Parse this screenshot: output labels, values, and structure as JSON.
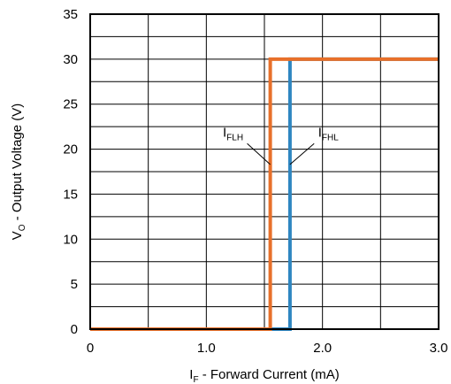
{
  "chart_data": {
    "type": "line",
    "title": "",
    "xlabel": {
      "main": "I",
      "sub": "F",
      "rest": " - Forward Current (mA)"
    },
    "ylabel": {
      "main": "V",
      "sub": "O",
      "rest": " - Output Voltage (V)"
    },
    "xlim": [
      0,
      3.0
    ],
    "ylim": [
      0,
      35
    ],
    "x_ticks": [
      0,
      0.5,
      1.0,
      1.5,
      2.0,
      2.5,
      3.0
    ],
    "x_tick_labels": [
      "0",
      "",
      "1.0",
      "",
      "2.0",
      "",
      "3.0"
    ],
    "y_ticks": [
      0,
      2.5,
      5,
      7.5,
      10,
      12.5,
      15,
      17.5,
      20,
      22.5,
      25,
      27.5,
      30,
      32.5,
      35
    ],
    "y_tick_labels": [
      "0",
      "",
      "5",
      "",
      "10",
      "",
      "15",
      "",
      "20",
      "",
      "25",
      "",
      "30",
      "",
      "35"
    ],
    "grid": true,
    "series": [
      {
        "color": "#2E86C1",
        "points": [
          [
            0,
            0
          ],
          [
            1.72,
            0
          ],
          [
            1.72,
            30
          ],
          [
            3.0,
            30
          ]
        ]
      },
      {
        "color": "#E8702A",
        "points": [
          [
            0,
            0
          ],
          [
            1.55,
            0
          ],
          [
            1.55,
            30
          ],
          [
            3.0,
            30
          ]
        ]
      }
    ],
    "annotations": [
      {
        "main": "I",
        "sub": "FLH",
        "target": [
          1.55,
          18.3
        ],
        "label_at": [
          1.23,
          21.6
        ]
      },
      {
        "main": "I",
        "sub": "FHL",
        "target": [
          1.72,
          18.3
        ],
        "label_at": [
          2.05,
          21.6
        ]
      }
    ]
  }
}
